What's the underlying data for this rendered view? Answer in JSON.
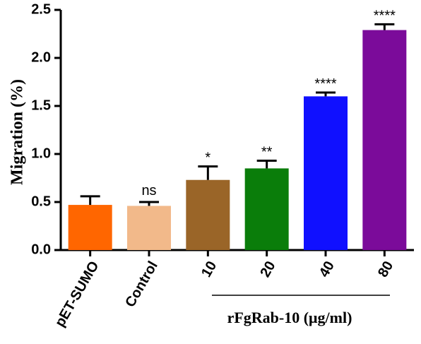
{
  "chart_data": {
    "type": "bar",
    "categories": [
      "pET-SUMO",
      "Control",
      "10",
      "20",
      "40",
      "80"
    ],
    "values": [
      0.47,
      0.46,
      0.73,
      0.85,
      1.6,
      2.29
    ],
    "errors": [
      0.09,
      0.04,
      0.14,
      0.08,
      0.04,
      0.06
    ],
    "colors": [
      "#ff6600",
      "#f2b98a",
      "#9a6528",
      "#0a7d0a",
      "#1010ff",
      "#7b0b9a"
    ],
    "significance": [
      "",
      "ns",
      "*",
      "**",
      "****",
      "****"
    ],
    "ylabel": "Migration (%)",
    "group_label": "rFgRab-10 (μg/ml)",
    "ylim": [
      0,
      2.5
    ],
    "yticks": [
      "0.0",
      "0.5",
      "1.0",
      "1.5",
      "2.0",
      "2.5"
    ],
    "grid": false,
    "legend": "none"
  }
}
